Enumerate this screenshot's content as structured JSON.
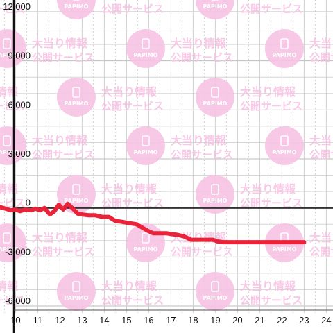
{
  "chart_data": {
    "type": "line",
    "title": "",
    "xlabel": "",
    "ylabel": "",
    "xlim": [
      9.3,
      24.3
    ],
    "ylim": [
      -6000,
      12000
    ],
    "x_ticks": [
      10,
      11,
      12,
      13,
      14,
      15,
      16,
      17,
      18,
      19,
      20,
      21,
      22,
      23,
      24
    ],
    "x_tick_labels": [
      "10",
      "11",
      "12",
      "13",
      "14",
      "15",
      "16",
      "17",
      "18",
      "19",
      "20",
      "21",
      "22",
      "23",
      "24"
    ],
    "y_ticks": [
      -6000,
      -3000,
      0,
      3000,
      6000,
      9000,
      12000
    ],
    "y_tick_labels": [
      "-6,000",
      "-3,000",
      "0",
      "3,000",
      "6,000",
      "9,000",
      "12,000"
    ],
    "grid": true,
    "series": [
      {
        "color": "#e8233a",
        "x": [
          9.3,
          9.55,
          9.8,
          10.0,
          10.2,
          10.45,
          10.7,
          10.9,
          11.1,
          11.3,
          11.55,
          11.75,
          11.95,
          12.15,
          12.35,
          12.55,
          12.8,
          13.0,
          13.3,
          13.6,
          13.9,
          14.2,
          14.5,
          14.8,
          15.0,
          15.2,
          15.45,
          15.7,
          15.95,
          16.2,
          16.5,
          16.8,
          17.0,
          17.3,
          17.6,
          17.9,
          18.2,
          18.6,
          18.9,
          19.1,
          19.35,
          19.6,
          20.0,
          20.5,
          21.0,
          21.5,
          22.0,
          22.5,
          23.0
        ],
        "y": [
          50,
          -50,
          -150,
          -100,
          -200,
          -100,
          -150,
          -50,
          -150,
          0,
          -400,
          -200,
          200,
          -100,
          250,
          0,
          -350,
          -400,
          -450,
          -450,
          -550,
          -550,
          -800,
          -850,
          -900,
          -950,
          -1000,
          -1200,
          -1400,
          -1550,
          -1550,
          -1550,
          -1600,
          -1650,
          -1750,
          -1950,
          -1950,
          -1950,
          -1950,
          -2050,
          -2100,
          -2100,
          -2100,
          -2100,
          -2100,
          -2100,
          -2100,
          -2100,
          -2100
        ]
      }
    ]
  },
  "watermark": {
    "line1": "大当り情報",
    "line2": "公開サービス",
    "badge": "PAPIMO",
    "color": "#f7c4e4"
  }
}
